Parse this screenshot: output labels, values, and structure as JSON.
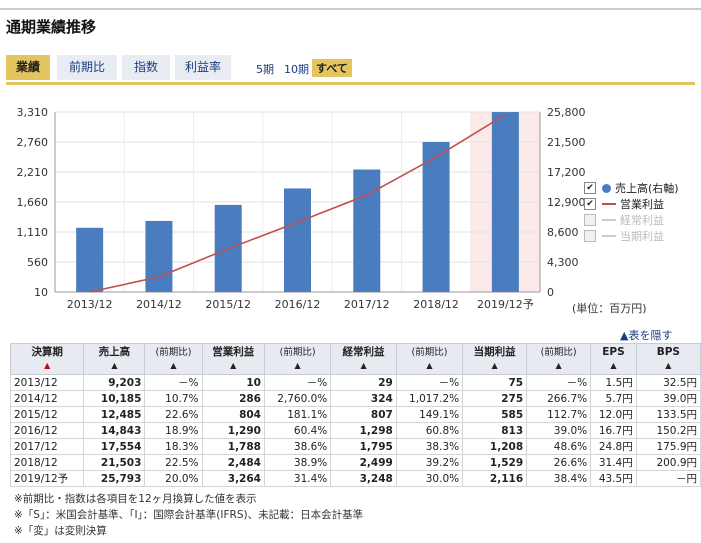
{
  "header": {
    "title": "通期業績推移"
  },
  "tabs": [
    {
      "label": "業績",
      "active": true
    },
    {
      "label": "前期比",
      "active": false
    },
    {
      "label": "指数",
      "active": false
    },
    {
      "label": "利益率",
      "active": false
    }
  ],
  "periods": [
    {
      "label": "5期",
      "active": false
    },
    {
      "label": "10期",
      "active": false
    },
    {
      "label": "すべて",
      "active": true
    }
  ],
  "chart_data": {
    "type": "bar",
    "categories": [
      "2013/12",
      "2014/12",
      "2015/12",
      "2016/12",
      "2017/12",
      "2018/12",
      "2019/12予"
    ],
    "series": [
      {
        "name": "売上高(右軸)",
        "type": "bar",
        "axis": "right",
        "values": [
          9203,
          10185,
          12485,
          14843,
          17554,
          21503,
          25793
        ],
        "color": "#4a7dc0"
      },
      {
        "name": "営業利益",
        "type": "line",
        "axis": "left",
        "values": [
          10,
          286,
          804,
          1290,
          1788,
          2484,
          3264
        ],
        "color": "#c0504d"
      }
    ],
    "left_axis": {
      "ticks": [
        "3,310",
        "2,760",
        "2,210",
        "1,660",
        "1,110",
        "560",
        "10"
      ],
      "min": 10,
      "max": 3310
    },
    "right_axis": {
      "ticks": [
        "25,800",
        "21,500",
        "17,200",
        "12,900",
        "8,600",
        "4,300",
        "0"
      ],
      "min": 0,
      "max": 25800
    },
    "forecast_highlight_index": 6,
    "unit_label": "(単位：百万円)",
    "grid": true
  },
  "legend": [
    {
      "label": "売上高(右軸)",
      "checked": true,
      "marker": "dot",
      "enabled": true
    },
    {
      "label": "営業利益",
      "checked": true,
      "marker": "line",
      "enabled": true
    },
    {
      "label": "経常利益",
      "checked": false,
      "marker": "line",
      "enabled": false
    },
    {
      "label": "当期利益",
      "checked": false,
      "marker": "line",
      "enabled": false
    }
  ],
  "hide_link": "▲表を隠す",
  "table": {
    "headers": [
      {
        "label": "決算期",
        "arrow": "▲",
        "arrow_red": true
      },
      {
        "label": "売上高",
        "arrow": "▲"
      },
      {
        "label": "(前期比)",
        "arrow": "▲",
        "sub": true
      },
      {
        "label": "営業利益",
        "arrow": "▲"
      },
      {
        "label": "(前期比)",
        "arrow": "▲",
        "sub": true
      },
      {
        "label": "経常利益",
        "arrow": "▲"
      },
      {
        "label": "(前期比)",
        "arrow": "▲",
        "sub": true
      },
      {
        "label": "当期利益",
        "arrow": "▲"
      },
      {
        "label": "(前期比)",
        "arrow": "▲",
        "sub": true
      },
      {
        "label": "EPS",
        "arrow": "▲"
      },
      {
        "label": "BPS",
        "arrow": "▲"
      }
    ],
    "rows": [
      [
        "2013/12",
        "9,203",
        "－%",
        "10",
        "－%",
        "29",
        "－%",
        "75",
        "－%",
        "1.5円",
        "32.5円"
      ],
      [
        "2014/12",
        "10,185",
        "10.7%",
        "286",
        "2,760.0%",
        "324",
        "1,017.2%",
        "275",
        "266.7%",
        "5.7円",
        "39.0円"
      ],
      [
        "2015/12",
        "12,485",
        "22.6%",
        "804",
        "181.1%",
        "807",
        "149.1%",
        "585",
        "112.7%",
        "12.0円",
        "133.5円"
      ],
      [
        "2016/12",
        "14,843",
        "18.9%",
        "1,290",
        "60.4%",
        "1,298",
        "60.8%",
        "813",
        "39.0%",
        "16.7円",
        "150.2円"
      ],
      [
        "2017/12",
        "17,554",
        "18.3%",
        "1,788",
        "38.6%",
        "1,795",
        "38.3%",
        "1,208",
        "48.6%",
        "24.8円",
        "175.9円"
      ],
      [
        "2018/12",
        "21,503",
        "22.5%",
        "2,484",
        "38.9%",
        "2,499",
        "39.2%",
        "1,529",
        "26.6%",
        "31.4円",
        "200.9円"
      ],
      [
        "2019/12予",
        "25,793",
        "20.0%",
        "3,264",
        "31.4%",
        "3,248",
        "30.0%",
        "2,116",
        "38.4%",
        "43.5円",
        "－円"
      ]
    ]
  },
  "notes": [
    "※前期比・指数は各項目を12ヶ月換算した値を表示",
    "※「S」：米国会計基準、「I」：国際会計基準(IFRS)、未記載：日本会計基準",
    "※「変」は変則決算"
  ]
}
